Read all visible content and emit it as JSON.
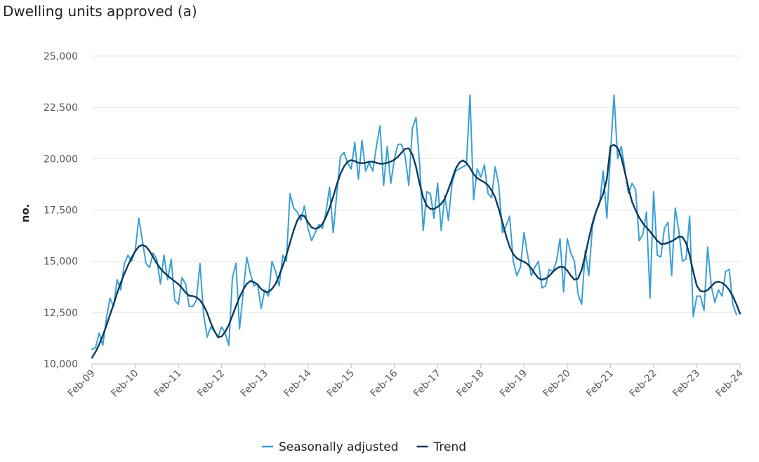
{
  "chart_data": {
    "type": "line",
    "title": "Dwelling units approved (a)",
    "xlabel": "",
    "ylabel": "no.",
    "ylim": [
      10000,
      25000
    ],
    "yticks": [
      10000,
      12500,
      15000,
      17500,
      20000,
      22500,
      25000
    ],
    "ytick_labels": [
      "10,000",
      "12,500",
      "15,000",
      "17,500",
      "20,000",
      "22,500",
      "25,000"
    ],
    "x_start": "Feb-09",
    "xtick_labels": [
      "Feb-09",
      "Feb-10",
      "Feb-11",
      "Feb-12",
      "Feb-13",
      "Feb-14",
      "Feb-15",
      "Feb-16",
      "Feb-17",
      "Feb-18",
      "Feb-19",
      "Feb-20",
      "Feb-21",
      "Feb-22",
      "Feb-23",
      "Feb-24"
    ],
    "grid": true,
    "legend_position": "bottom-center",
    "series": [
      {
        "name": "Seasonally adjusted",
        "color": "#3a9fd4",
        "values": [
          10700,
          10800,
          11500,
          10900,
          12200,
          13200,
          12800,
          14100,
          13600,
          14900,
          15300,
          15000,
          15500,
          17100,
          16000,
          14900,
          14700,
          15400,
          15100,
          13900,
          15300,
          14100,
          15100,
          13100,
          12900,
          14200,
          13900,
          12800,
          12800,
          13100,
          14900,
          12400,
          11300,
          11800,
          11600,
          11300,
          11800,
          11500,
          10900,
          14200,
          14900,
          11700,
          13500,
          15200,
          14400,
          13800,
          13900,
          12700,
          13600,
          13300,
          15000,
          14500,
          13800,
          15300,
          15000,
          18300,
          17600,
          17400,
          17000,
          17700,
          16600,
          16000,
          16400,
          16800,
          16600,
          17400,
          18600,
          16400,
          18300,
          20100,
          20300,
          19800,
          19500,
          20800,
          19000,
          20900,
          19400,
          19800,
          19400,
          20600,
          21600,
          18700,
          20600,
          18800,
          20000,
          20700,
          20700,
          20100,
          18700,
          21500,
          22000,
          19800,
          16500,
          18400,
          18300,
          17100,
          18800,
          16500,
          18200,
          17000,
          18800,
          19400,
          19500,
          19600,
          19700,
          23100,
          18000,
          19500,
          19100,
          19700,
          18300,
          18100,
          19600,
          18700,
          16400,
          16700,
          17200,
          15000,
          14300,
          14700,
          16400,
          15300,
          14300,
          14700,
          15000,
          13700,
          13800,
          14600,
          14500,
          15000,
          16100,
          13500,
          16100,
          15400,
          15000,
          13400,
          12900,
          15500,
          14300,
          16700,
          17400,
          17800,
          19400,
          17100,
          20200,
          23100,
          20000,
          20600,
          19500,
          18300,
          18800,
          18500,
          16000,
          16300,
          17400,
          13200,
          18400,
          15300,
          15200,
          16600,
          16900,
          14300,
          17600,
          16500,
          15000,
          15100,
          17200,
          12300,
          13300,
          13300,
          12600,
          15700,
          13800,
          13000,
          13600,
          13300,
          14500,
          14600,
          12900,
          12400
        ]
      },
      {
        "name": "Trend",
        "color": "#0d3a5c",
        "values": [
          10300,
          10580,
          10950,
          11380,
          11860,
          12380,
          12900,
          13450,
          13950,
          14400,
          14800,
          15170,
          15480,
          15720,
          15800,
          15720,
          15500,
          15200,
          14900,
          14650,
          14460,
          14300,
          14160,
          14020,
          13880,
          13700,
          13480,
          13320,
          13300,
          13250,
          13100,
          12850,
          12480,
          12000,
          11600,
          11300,
          11330,
          11560,
          11900,
          12350,
          12820,
          13250,
          13620,
          13900,
          14040,
          13980,
          13860,
          13650,
          13520,
          13500,
          13650,
          13900,
          14300,
          14780,
          15300,
          15900,
          16500,
          16980,
          17250,
          17200,
          16900,
          16650,
          16580,
          16640,
          16820,
          17150,
          17600,
          18150,
          18750,
          19250,
          19620,
          19850,
          19930,
          19880,
          19800,
          19780,
          19800,
          19850,
          19850,
          19800,
          19760,
          19760,
          19800,
          19860,
          19950,
          20100,
          20300,
          20480,
          20500,
          20200,
          19600,
          18800,
          18100,
          17700,
          17550,
          17550,
          17650,
          17800,
          18050,
          18500,
          19000,
          19500,
          19800,
          19920,
          19800,
          19550,
          19250,
          19050,
          18950,
          18850,
          18700,
          18450,
          18100,
          17550,
          16900,
          16250,
          15700,
          15350,
          15150,
          15050,
          14980,
          14860,
          14660,
          14400,
          14180,
          14100,
          14160,
          14280,
          14480,
          14640,
          14740,
          14720,
          14550,
          14300,
          14100,
          14160,
          14580,
          15280,
          16100,
          16850,
          17430,
          17880,
          18300,
          19000,
          20600,
          20680,
          20520,
          20080,
          19350,
          18580,
          17900,
          17480,
          17130,
          16850,
          16650,
          16450,
          16230,
          16000,
          15850,
          15850,
          15900,
          15980,
          16080,
          16200,
          16180,
          15900,
          15300,
          14500,
          13800,
          13550,
          13520,
          13600,
          13780,
          13960,
          14000,
          13950,
          13820,
          13600,
          13300,
          12900,
          12450
        ]
      }
    ]
  }
}
